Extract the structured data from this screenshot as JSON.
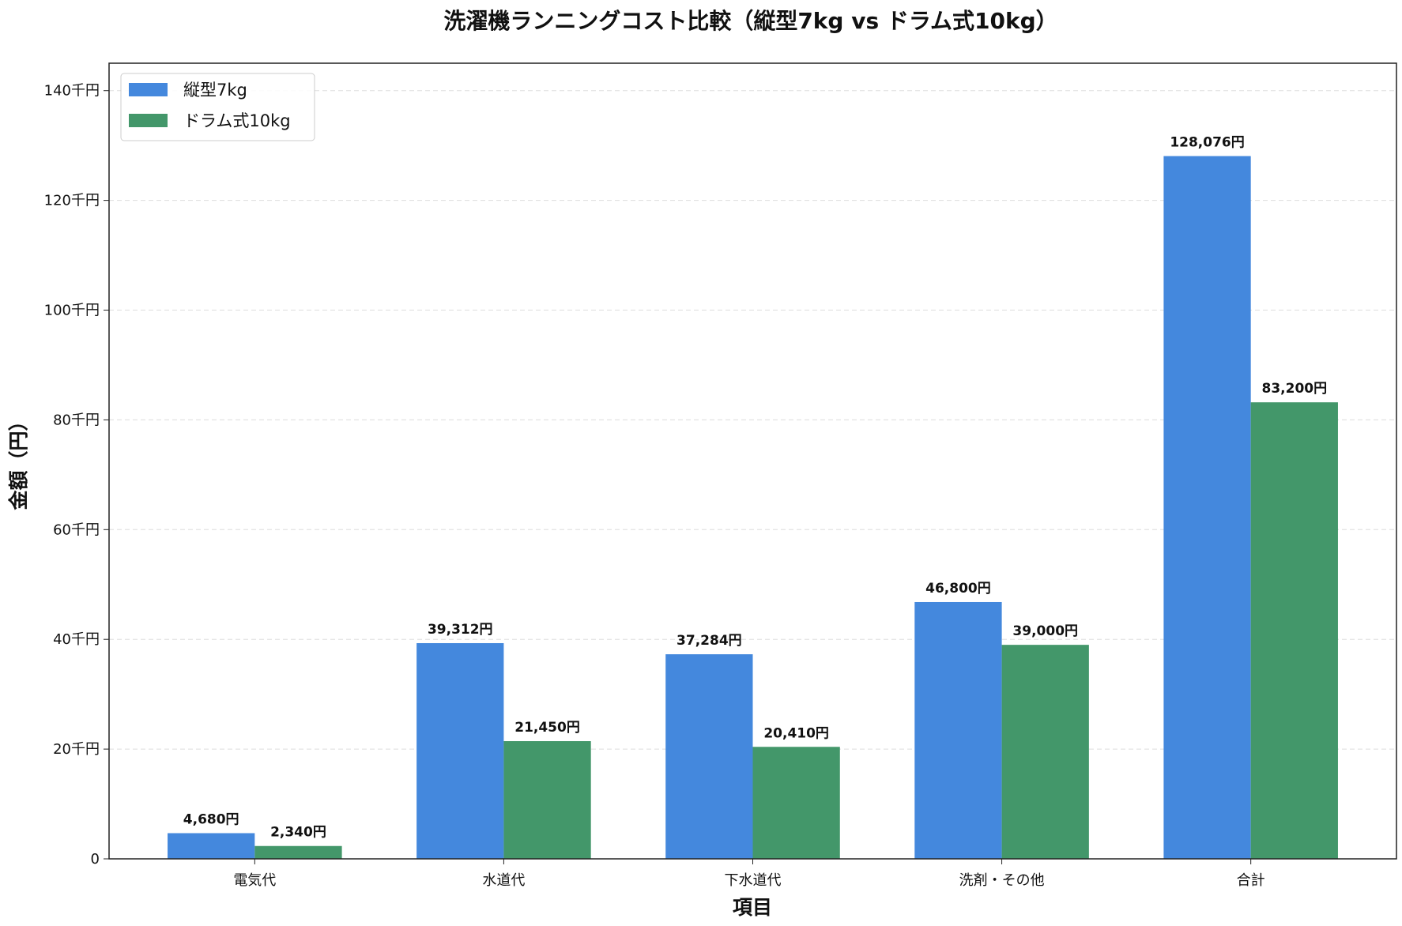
{
  "chart_data": {
    "type": "bar",
    "title": "洗濯機ランニングコスト比較（縦型7kg vs ドラム式10kg）",
    "xlabel": "項目",
    "ylabel": "金額（円）",
    "categories": [
      "電気代",
      "水道代",
      "下水道代",
      "洗剤・その他",
      "合計"
    ],
    "series": [
      {
        "name": "縦型7kg",
        "color": "#4488DD",
        "values": [
          4680,
          39312,
          37284,
          46800,
          128076
        ],
        "labels": [
          "4,680円",
          "39,312円",
          "37,284円",
          "46,800円",
          "128,076円"
        ]
      },
      {
        "name": "ドラム式10kg",
        "color": "#43976A",
        "values": [
          2340,
          21450,
          20410,
          39000,
          83200
        ],
        "labels": [
          "2,340円",
          "21,450円",
          "20,410円",
          "39,000円",
          "83,200円"
        ]
      }
    ],
    "ylim": [
      0,
      145000
    ],
    "yticks": [
      0,
      20000,
      40000,
      60000,
      80000,
      100000,
      120000,
      140000
    ],
    "ytick_labels": [
      "0",
      "20千円",
      "40千円",
      "60千円",
      "80千円",
      "100千円",
      "120千円",
      "140千円"
    ],
    "grid": true,
    "legend_position": "top-left"
  }
}
